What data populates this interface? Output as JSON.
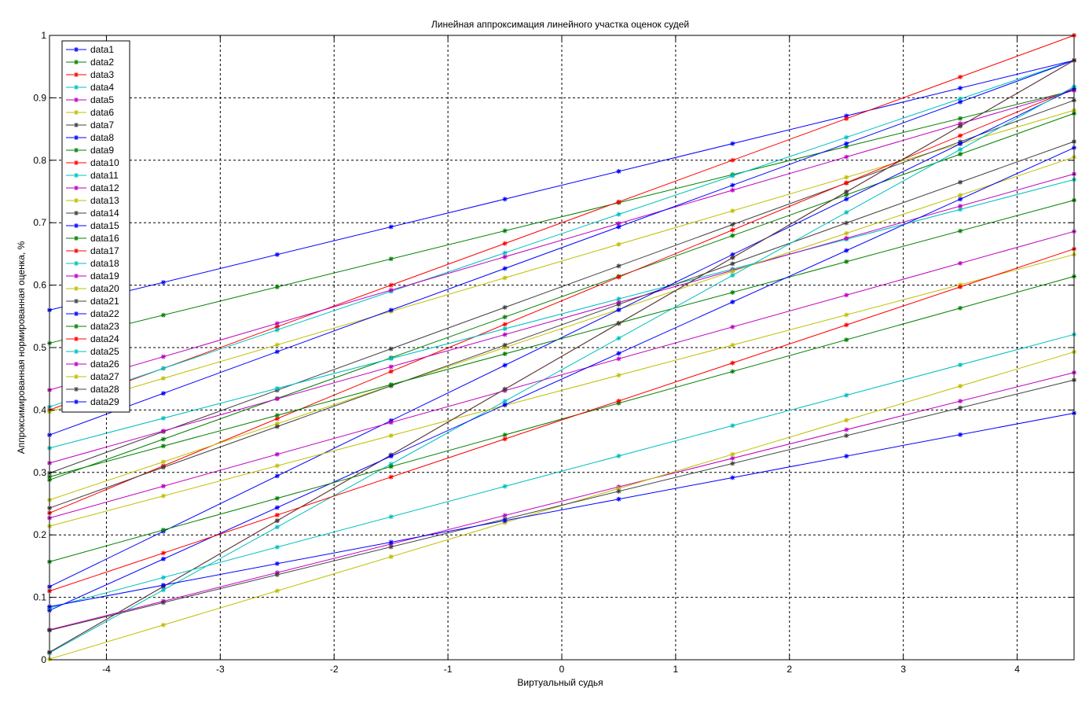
{
  "chart_data": {
    "type": "line",
    "title": "Линейная аппроксимация линейного участка оценок судей",
    "xlabel": "Виртуальный судья",
    "ylabel": "Аппроксимированная нормированная оценка, %",
    "xlim": [
      -4.5,
      4.5
    ],
    "ylim": [
      0,
      1
    ],
    "xticks": [
      -4,
      -3,
      -2,
      -1,
      0,
      1,
      2,
      3,
      4
    ],
    "yticks": [
      0,
      0.1,
      0.2,
      0.3,
      0.4,
      0.5,
      0.6,
      0.7,
      0.8,
      0.9,
      1
    ],
    "xtick_labels": [
      "-4",
      "-3",
      "-2",
      "-1",
      "0",
      "1",
      "2",
      "3",
      "4"
    ],
    "ytick_labels": [
      "0",
      "0.1",
      "0.2",
      "0.3",
      "0.4",
      "0.5",
      "0.6",
      "0.7",
      "0.8",
      "0.9",
      "1"
    ],
    "grid": true,
    "grid_style": "dashed",
    "legend_position": "top-left",
    "marker": "asterisk",
    "x": [
      -4.5,
      -3.5,
      -2.5,
      -1.5,
      -0.5,
      0.5,
      1.5,
      2.5,
      3.5,
      4.5
    ],
    "series": [
      {
        "name": "data1",
        "color": "#0000ff",
        "line": [
          -4.5,
          0.56,
          4.5,
          0.96
        ]
      },
      {
        "name": "data2",
        "color": "#008000",
        "line": [
          -4.5,
          0.507,
          4.5,
          0.912
        ]
      },
      {
        "name": "data3",
        "color": "#ff0000",
        "line": [
          -4.5,
          0.4,
          4.5,
          1.0
        ]
      },
      {
        "name": "data4",
        "color": "#00bfbf",
        "line": [
          -4.5,
          0.405,
          4.5,
          0.96
        ]
      },
      {
        "name": "data5",
        "color": "#bf00bf",
        "line": [
          -4.5,
          0.432,
          4.5,
          0.912
        ]
      },
      {
        "name": "data6",
        "color": "#bfbf00",
        "line": [
          -4.5,
          0.397,
          4.5,
          0.88
        ]
      },
      {
        "name": "data7",
        "color": "#404040",
        "line": [
          -4.5,
          0.299,
          4.5,
          0.896
        ]
      },
      {
        "name": "data8",
        "color": "#0000ff",
        "line": [
          -4.5,
          0.36,
          4.5,
          0.96
        ]
      },
      {
        "name": "data9",
        "color": "#008000",
        "line": [
          -4.5,
          0.288,
          4.5,
          0.875
        ]
      },
      {
        "name": "data10",
        "color": "#ff0000",
        "line": [
          -4.5,
          0.235,
          4.5,
          0.915
        ]
      },
      {
        "name": "data11",
        "color": "#00bfbf",
        "line": [
          -4.5,
          0.339,
          4.5,
          0.769
        ]
      },
      {
        "name": "data12",
        "color": "#bf00bf",
        "line": [
          -4.5,
          0.315,
          4.5,
          0.778
        ]
      },
      {
        "name": "data13",
        "color": "#bfbf00",
        "line": [
          -4.5,
          0.256,
          4.5,
          0.805
        ]
      },
      {
        "name": "data14",
        "color": "#404040",
        "line": [
          -4.5,
          0.243,
          4.5,
          0.83
        ]
      },
      {
        "name": "data15",
        "color": "#0000ff",
        "line": [
          -4.5,
          0.117,
          4.5,
          0.915
        ]
      },
      {
        "name": "data16",
        "color": "#008000",
        "line": [
          -4.5,
          0.293,
          4.5,
          0.736
        ]
      },
      {
        "name": "data17",
        "color": "#ff0000",
        "line": [
          -4.5,
          0.012,
          4.5,
          0.96
        ]
      },
      {
        "name": "data18",
        "color": "#00bfbf",
        "line": [
          -4.5,
          0.011,
          4.5,
          0.918
        ]
      },
      {
        "name": "data19",
        "color": "#bf00bf",
        "line": [
          -4.5,
          0.227,
          4.5,
          0.686
        ]
      },
      {
        "name": "data20",
        "color": "#bfbf00",
        "line": [
          -4.5,
          0.214,
          4.5,
          0.649
        ]
      },
      {
        "name": "data21",
        "color": "#404040",
        "line": [
          -4.5,
          0.012,
          4.5,
          0.96
        ]
      },
      {
        "name": "data22",
        "color": "#0000ff",
        "line": [
          -4.5,
          0.079,
          4.5,
          0.82
        ]
      },
      {
        "name": "data23",
        "color": "#008000",
        "line": [
          -4.5,
          0.157,
          4.5,
          0.614
        ]
      },
      {
        "name": "data24",
        "color": "#ff0000",
        "line": [
          -4.5,
          0.11,
          4.5,
          0.658
        ]
      },
      {
        "name": "data25",
        "color": "#00bfbf",
        "line": [
          -4.5,
          0.083,
          4.5,
          0.521
        ]
      },
      {
        "name": "data26",
        "color": "#bf00bf",
        "line": [
          -4.5,
          0.048,
          4.5,
          0.46
        ]
      },
      {
        "name": "data27",
        "color": "#bfbf00",
        "line": [
          -4.5,
          0.001,
          4.5,
          0.493
        ]
      },
      {
        "name": "data28",
        "color": "#404040",
        "line": [
          -4.5,
          0.047,
          4.5,
          0.448
        ]
      },
      {
        "name": "data29",
        "color": "#0000ff",
        "line": [
          -4.5,
          0.085,
          4.5,
          0.395
        ]
      }
    ]
  }
}
